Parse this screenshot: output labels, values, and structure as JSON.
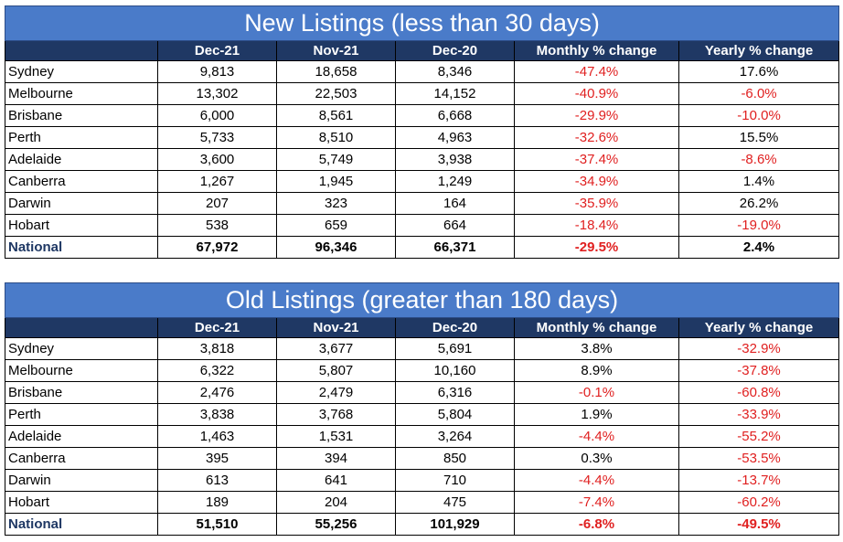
{
  "tables": [
    {
      "title": "New Listings (less than 30 days)",
      "headers": [
        "",
        "Dec-21",
        "Nov-21",
        "Dec-20",
        "Monthly % change",
        "Yearly % change"
      ],
      "rows": [
        [
          "Sydney",
          "9,813",
          "18,658",
          "8,346",
          "-47.4%",
          "17.6%"
        ],
        [
          "Melbourne",
          "13,302",
          "22,503",
          "14,152",
          "-40.9%",
          "-6.0%"
        ],
        [
          "Brisbane",
          "6,000",
          "8,561",
          "6,668",
          "-29.9%",
          "-10.0%"
        ],
        [
          "Perth",
          "5,733",
          "8,510",
          "4,963",
          "-32.6%",
          "15.5%"
        ],
        [
          "Adelaide",
          "3,600",
          "5,749",
          "3,938",
          "-37.4%",
          "-8.6%"
        ],
        [
          "Canberra",
          "1,267",
          "1,945",
          "1,249",
          "-34.9%",
          "1.4%"
        ],
        [
          "Darwin",
          "207",
          "323",
          "164",
          "-35.9%",
          "26.2%"
        ],
        [
          "Hobart",
          "538",
          "659",
          "664",
          "-18.4%",
          "-19.0%"
        ]
      ],
      "total": [
        "National",
        "67,972",
        "96,346",
        "66,371",
        "-29.5%",
        "2.4%"
      ]
    },
    {
      "title": "Old Listings (greater than 180 days)",
      "headers": [
        "",
        "Dec-21",
        "Nov-21",
        "Dec-20",
        "Monthly % change",
        "Yearly % change"
      ],
      "rows": [
        [
          "Sydney",
          "3,818",
          "3,677",
          "5,691",
          "3.8%",
          "-32.9%"
        ],
        [
          "Melbourne",
          "6,322",
          "5,807",
          "10,160",
          "8.9%",
          "-37.8%"
        ],
        [
          "Brisbane",
          "2,476",
          "2,479",
          "6,316",
          "-0.1%",
          "-60.8%"
        ],
        [
          "Perth",
          "3,838",
          "3,768",
          "5,804",
          "1.9%",
          "-33.9%"
        ],
        [
          "Adelaide",
          "1,463",
          "1,531",
          "3,264",
          "-4.4%",
          "-55.2%"
        ],
        [
          "Canberra",
          "395",
          "394",
          "850",
          "0.3%",
          "-53.5%"
        ],
        [
          "Darwin",
          "613",
          "641",
          "710",
          "-4.4%",
          "-13.7%"
        ],
        [
          "Hobart",
          "189",
          "204",
          "475",
          "-7.4%",
          "-60.2%"
        ]
      ],
      "total": [
        "National",
        "51,510",
        "55,256",
        "101,929",
        "-6.8%",
        "-49.5%"
      ]
    }
  ],
  "colors": {
    "title_bg": "#4a7bc9",
    "header_bg": "#1f3864",
    "negative_text": "#e02020"
  }
}
